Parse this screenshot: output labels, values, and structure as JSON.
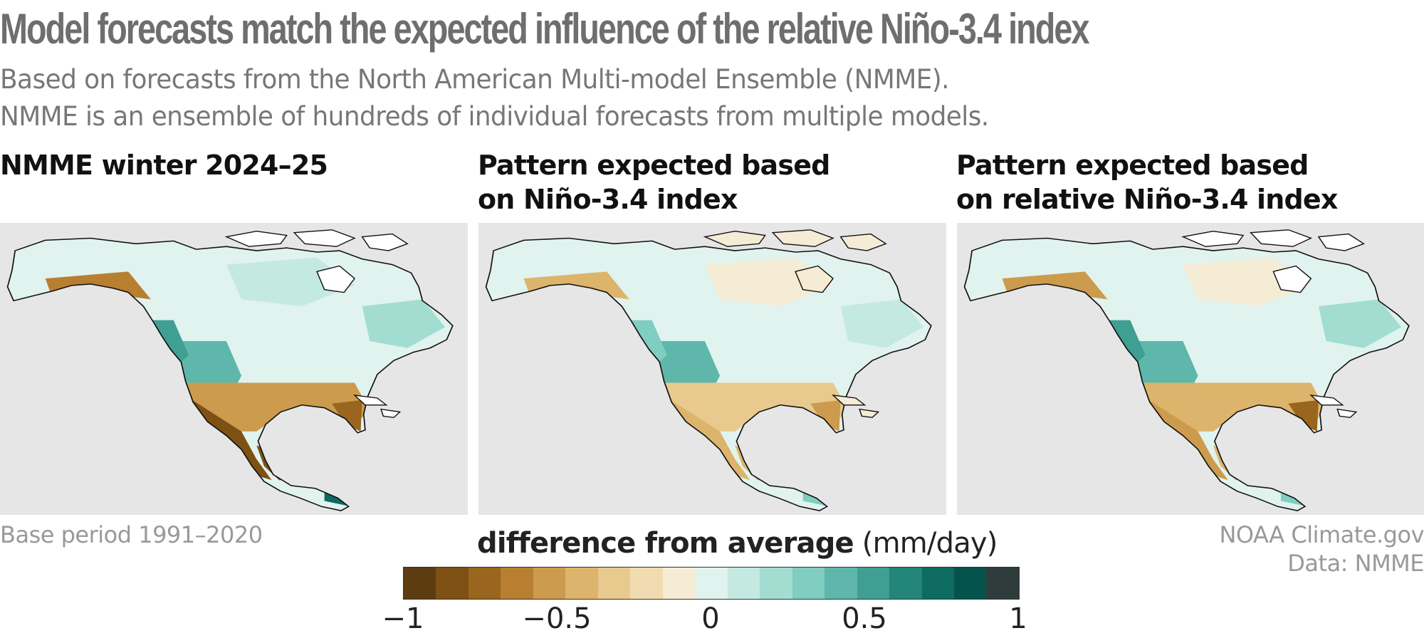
{
  "title": "Model forecasts match the expected influence of the relative Niño-3.4 index",
  "subtitle_lines": [
    "Based on forecasts from the North American Multi-model Ensemble (NMME).",
    "NMME is an ensemble of hundreds of individual forecasts from multiple models."
  ],
  "panels": [
    {
      "title_lines": [
        "NMME winter 2024–25"
      ]
    },
    {
      "title_lines": [
        "Pattern expected based",
        "on Niño-3.4 index"
      ]
    },
    {
      "title_lines": [
        "Pattern expected based",
        "on relative Niño-3.4 index"
      ]
    }
  ],
  "footnotes": {
    "base_period": "Base period 1991–2020",
    "credit_line1": "NOAA Climate.gov",
    "credit_line2": "Data: NMME"
  },
  "legend": {
    "title_bold": "difference from average",
    "units": "(mm/day)",
    "ticks": [
      "−1",
      "−0.5",
      "0",
      "0.5",
      "1"
    ],
    "tick_values": [
      -1,
      -0.5,
      0,
      0.5,
      1
    ],
    "range": [
      -1,
      1
    ],
    "colors": [
      "#5e3c11",
      "#7d5014",
      "#9a651e",
      "#b87f31",
      "#cd9b4d",
      "#dcb46b",
      "#e8c98e",
      "#f0dcb0",
      "#f5ecd6",
      "#e1f3ee",
      "#c4e9e1",
      "#a3ddd2",
      "#80cdc1",
      "#5eb7aa",
      "#3f9f92",
      "#23857a",
      "#0d6b61",
      "#05544b",
      "#2e3d3b"
    ]
  },
  "colors": {
    "ocean": "#e6e6e6",
    "coast": "#111111",
    "wet": "#d6f0ea",
    "dry": "#e8c98e"
  }
}
